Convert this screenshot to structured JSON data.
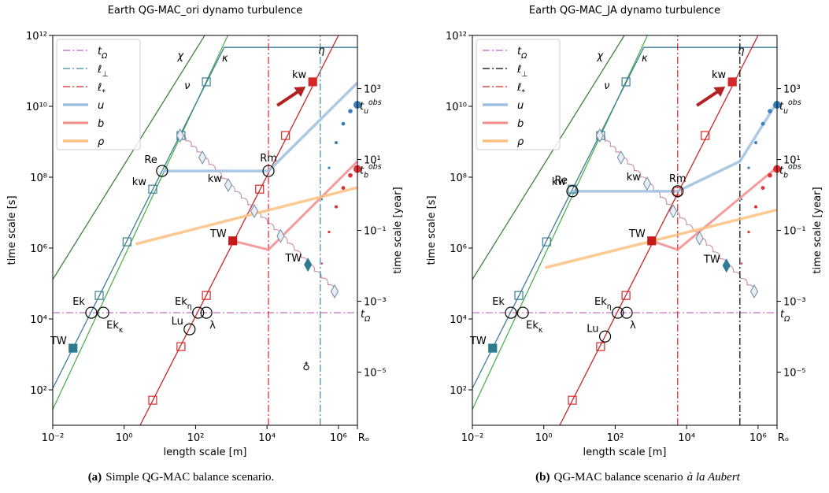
{
  "chart_data": [
    {
      "type": "line",
      "title": "Earth QG-MAC_ori dynamo turbulence",
      "xlabel": "length scale [m]",
      "ylabel": "time scale [s]",
      "y2label": "time scale [year]",
      "xscale": "log",
      "yscale": "log",
      "xlim": [
        0.01,
        3400000
      ],
      "ylim": [
        10,
        1000000000000
      ],
      "y2lim": [
        3.17e-07,
        31700
      ],
      "xticks": [
        {
          "value": 0.01,
          "label": "10⁻²"
        },
        {
          "value": 1,
          "label": "10⁰"
        },
        {
          "value": 100,
          "label": "10²"
        },
        {
          "value": 10000,
          "label": "10⁴"
        },
        {
          "value": 1000000,
          "label": "10⁶"
        },
        {
          "value": 3400000,
          "label": "Rₒ"
        }
      ],
      "yticks": [
        {
          "value": 100,
          "label": "10²"
        },
        {
          "value": 10000,
          "label": "10⁴"
        },
        {
          "value": 1000000,
          "label": "10⁶"
        },
        {
          "value": 100000000,
          "label": "10⁸"
        },
        {
          "value": 10000000000,
          "label": "10¹⁰"
        },
        {
          "value": 1000000000000,
          "label": "10¹²"
        }
      ],
      "y2ticks": [
        {
          "value": 1e-05,
          "label": "10⁻⁵"
        },
        {
          "value": 0.001,
          "label": "10⁻³"
        },
        {
          "value": 0.1,
          "label": "10⁻¹"
        },
        {
          "value": 10,
          "label": "10¹"
        },
        {
          "value": 1000,
          "label": "10³"
        }
      ],
      "legend": "upper left",
      "series": [
        {
          "name": "t",
          "sub": "Ω",
          "color": "#bf5fbf",
          "dash": "dashdot",
          "width": 1.2,
          "x": [
            0.01,
            3400000
          ],
          "y": [
            15000,
            15000
          ]
        },
        {
          "name": "ℓ",
          "sub": "⊥",
          "color": "#3a8aa6",
          "dash": "dashdot",
          "width": 1.2,
          "x": [
            310000,
            310000
          ],
          "y": [
            10,
            1000000000000
          ]
        },
        {
          "name": "ℓ",
          "sub": "*",
          "color": "#d62728",
          "dash": "dashdot",
          "width": 1.2,
          "x": [
            11000,
            11000
          ],
          "y": [
            10,
            1000000000000
          ]
        },
        {
          "name": "u",
          "color": "#9dbfdf",
          "width": 3.5,
          "x": [
            11.5,
            11000,
            3400000
          ],
          "y": [
            150000000,
            150000000,
            46000000000
          ]
        },
        {
          "name": "b",
          "color": "#f28b8b",
          "width": 3,
          "x": [
            1100,
            11000,
            3400000
          ],
          "y": [
            1600000,
            900000,
            280000000
          ]
        },
        {
          "name": "ρ",
          "color": "#fdbf80",
          "width": 3.5,
          "x": [
            2.1,
            3400000
          ],
          "y": [
            1300000,
            51000000
          ]
        }
      ],
      "curves": [
        {
          "name": "χ",
          "color": "#3f7f3f",
          "x": [
            0.01,
            180
          ],
          "y": [
            130000,
            1000000000000
          ]
        },
        {
          "name": "κ",
          "color": "#4fb04f",
          "x": [
            0.01,
            800
          ],
          "y": [
            28,
            1000000000000
          ]
        },
        {
          "name": "ν",
          "color": "#3b7d96",
          "x": [
            0.01,
            630,
            3400000
          ],
          "y": [
            110,
            460000000000,
            460000000000
          ]
        },
        {
          "name": "η",
          "color": "#c62828",
          "x": [
            2.8,
            1000000
          ],
          "y": [
            10,
            1000000000000
          ]
        }
      ],
      "squares": [
        {
          "x": 0.2,
          "y": 46000,
          "color": "#3b7d96"
        },
        {
          "x": 1.2,
          "y": 1500000,
          "color": "#3b7d96"
        },
        {
          "x": 6.3,
          "y": 46000000,
          "color": "#3b7d96",
          "label": "kw"
        },
        {
          "x": 39,
          "y": 1500000000,
          "color": "#3b7d96"
        },
        {
          "x": 200,
          "y": 49000000000,
          "color": "#3b7d96"
        },
        {
          "x": 6.3,
          "y": 51,
          "color": "#d62728"
        },
        {
          "x": 39,
          "y": 1660,
          "color": "#d62728"
        },
        {
          "x": 200,
          "y": 46000,
          "color": "#d62728"
        },
        {
          "x": 6200,
          "y": 46000000,
          "color": "#d62728"
        },
        {
          "x": 33000,
          "y": 1500000000,
          "color": "#d62728"
        },
        {
          "x": 190000,
          "y": 49000000000,
          "color": "#d62728",
          "filled": true,
          "label": "kw"
        },
        {
          "x": 0.037,
          "y": 1500,
          "color": "#2f7a8e",
          "filled": true,
          "label": "TW"
        },
        {
          "x": 1100,
          "y": 1600000,
          "color": "#c41a1a",
          "filled": true,
          "label": "TW"
        }
      ],
      "diamonds": [
        {
          "x": 37,
          "y": 1500000000
        },
        {
          "x": 155,
          "y": 360000000
        },
        {
          "x": 820,
          "y": 60000000,
          "label": "kw"
        },
        {
          "x": 4400,
          "y": 11000000
        },
        {
          "x": 24000,
          "y": 2200000
        },
        {
          "x": 140000,
          "y": 340000,
          "filled": true,
          "label": "TW"
        },
        {
          "x": 780000,
          "y": 60000
        }
      ],
      "points": [
        {
          "label": "Re",
          "x": 11.5,
          "y": 150000000
        },
        {
          "label": "Rm",
          "x": 11000,
          "y": 150000000
        },
        {
          "label": "Ek",
          "x": 0.12,
          "y": 15000
        },
        {
          "label": "Ek",
          "sub": "κ",
          "x": 0.26,
          "y": 15000
        },
        {
          "label": "Ek",
          "sub": "η",
          "x": 118,
          "y": 15000
        },
        {
          "label": "λ",
          "x": 200,
          "y": 15000
        },
        {
          "label": "Lu",
          "x": 68,
          "y": 5100
        }
      ],
      "obs": [
        {
          "label": "t",
          "sub": "u",
          "sup": "obs",
          "color": "#3a7fb8",
          "x": 3400000,
          "y": 11000000000
        },
        {
          "label": "t",
          "sub": "b",
          "sup": "obs",
          "color": "#e03030",
          "x": 3400000,
          "y": 170000000
        }
      ],
      "symbol": "♁"
    },
    {
      "type": "line",
      "title": "Earth QG-MAC_JA dynamo turbulence",
      "xlabel": "length scale [m]",
      "ylabel": "time scale [s]",
      "y2label": "time scale [year]",
      "xscale": "log",
      "yscale": "log",
      "xlim": [
        0.01,
        3400000
      ],
      "ylim": [
        10,
        1000000000000
      ],
      "y2lim": [
        3.17e-07,
        31700
      ],
      "xticks": [
        {
          "value": 0.01,
          "label": "10⁻²"
        },
        {
          "value": 1,
          "label": "10⁰"
        },
        {
          "value": 100,
          "label": "10²"
        },
        {
          "value": 10000,
          "label": "10⁴"
        },
        {
          "value": 1000000,
          "label": "10⁶"
        },
        {
          "value": 3400000,
          "label": "Rₒ"
        }
      ],
      "yticks": [
        {
          "value": 100,
          "label": "10²"
        },
        {
          "value": 10000,
          "label": "10⁴"
        },
        {
          "value": 1000000,
          "label": "10⁶"
        },
        {
          "value": 100000000,
          "label": "10⁸"
        },
        {
          "value": 10000000000,
          "label": "10¹⁰"
        },
        {
          "value": 1000000000000,
          "label": "10¹²"
        }
      ],
      "y2ticks": [
        {
          "value": 1e-05,
          "label": "10⁻⁵"
        },
        {
          "value": 0.001,
          "label": "10⁻³"
        },
        {
          "value": 0.1,
          "label": "10⁻¹"
        },
        {
          "value": 10,
          "label": "10¹"
        },
        {
          "value": 1000,
          "label": "10³"
        }
      ],
      "legend": "upper left",
      "series": [
        {
          "name": "t",
          "sub": "Ω",
          "color": "#bf5fbf",
          "dash": "dashdot",
          "width": 1.2,
          "x": [
            0.01,
            3400000
          ],
          "y": [
            15000,
            15000
          ]
        },
        {
          "name": "ℓ",
          "sub": "⊥",
          "color": "#000000",
          "dash": "dashdot",
          "width": 1.2,
          "x": [
            310000,
            310000
          ],
          "y": [
            10,
            1000000000000
          ]
        },
        {
          "name": "ℓ",
          "sub": "*",
          "color": "#d62728",
          "dash": "dashdot",
          "width": 1.2,
          "x": [
            5600,
            5600
          ],
          "y": [
            10,
            1000000000000
          ]
        },
        {
          "name": "u",
          "color": "#9dbfdf",
          "width": 3.5,
          "x": [
            6.3,
            5600,
            310000,
            3400000
          ],
          "y": [
            40000000,
            40000000,
            280000000,
            13000000000
          ]
        },
        {
          "name": "b",
          "color": "#f28b8b",
          "width": 3,
          "x": [
            1050,
            5600,
            3400000
          ],
          "y": [
            1600000,
            900000,
            190000000
          ]
        },
        {
          "name": "ρ",
          "color": "#fdbf80",
          "width": 3.5,
          "x": [
            1.1,
            3400000
          ],
          "y": [
            280000,
            12000000
          ]
        }
      ],
      "curves": [
        {
          "name": "χ",
          "color": "#3f7f3f",
          "x": [
            0.01,
            180
          ],
          "y": [
            130000,
            1000000000000
          ]
        },
        {
          "name": "κ",
          "color": "#4fb04f",
          "x": [
            0.01,
            800
          ],
          "y": [
            28,
            1000000000000
          ]
        },
        {
          "name": "ν",
          "color": "#3b7d96",
          "x": [
            0.01,
            630,
            3400000
          ],
          "y": [
            110,
            460000000000,
            460000000000
          ]
        },
        {
          "name": "η",
          "color": "#c62828",
          "x": [
            2.8,
            1000000
          ],
          "y": [
            10,
            1000000000000
          ]
        }
      ],
      "squares": [
        {
          "x": 0.2,
          "y": 46000,
          "color": "#3b7d96"
        },
        {
          "x": 1.2,
          "y": 1500000,
          "color": "#3b7d96"
        },
        {
          "x": 6.3,
          "y": 46000000,
          "color": "#3b7d96",
          "label": "kw"
        },
        {
          "x": 39,
          "y": 1500000000,
          "color": "#3b7d96"
        },
        {
          "x": 200,
          "y": 49000000000,
          "color": "#3b7d96"
        },
        {
          "x": 6.3,
          "y": 51,
          "color": "#d62728"
        },
        {
          "x": 39,
          "y": 1660,
          "color": "#d62728"
        },
        {
          "x": 200,
          "y": 46000,
          "color": "#d62728"
        },
        {
          "x": 5600,
          "y": 40000000,
          "color": "#d62728"
        },
        {
          "x": 33000,
          "y": 1500000000,
          "color": "#d62728"
        },
        {
          "x": 190000,
          "y": 49000000000,
          "color": "#d62728",
          "filled": true,
          "label": "kw"
        },
        {
          "x": 0.037,
          "y": 1500,
          "color": "#2f7a8e",
          "filled": true,
          "label": "TW"
        },
        {
          "x": 1050,
          "y": 1600000,
          "color": "#c41a1a",
          "filled": true,
          "label": "TW"
        }
      ],
      "diamonds": [
        {
          "x": 37,
          "y": 1500000000
        },
        {
          "x": 145,
          "y": 360000000
        },
        {
          "x": 780,
          "y": 66000000,
          "label": "kw"
        },
        {
          "x": 4200,
          "y": 11000000
        },
        {
          "x": 23000,
          "y": 1900000
        },
        {
          "x": 130000,
          "y": 320000,
          "filled": true,
          "label": "TW"
        },
        {
          "x": 780000,
          "y": 60000
        }
      ],
      "points": [
        {
          "label": "Re",
          "x": 6.3,
          "y": 40000000
        },
        {
          "label": "Rm",
          "x": 5600,
          "y": 40000000
        },
        {
          "label": "Ek",
          "x": 0.12,
          "y": 15000
        },
        {
          "label": "Ek",
          "sub": "κ",
          "x": 0.26,
          "y": 15000
        },
        {
          "label": "Ek",
          "sub": "η",
          "x": 118,
          "y": 15000
        },
        {
          "label": "λ",
          "x": 210,
          "y": 15000
        },
        {
          "label": "Lu",
          "x": 52,
          "y": 3200
        }
      ],
      "obs": [
        {
          "label": "t",
          "sub": "u",
          "sup": "obs",
          "color": "#3a7fb8",
          "x": 3400000,
          "y": 11000000000
        },
        {
          "label": "t",
          "sub": "b",
          "sup": "obs",
          "color": "#e03030",
          "x": 3400000,
          "y": 170000000
        }
      ]
    }
  ],
  "captions": [
    {
      "label": "(a)",
      "text": "Simple QG-MAC balance scenario."
    },
    {
      "label": "(b)",
      "text": "QG-MAC balance scenario",
      "emph": "à la Aubert"
    }
  ]
}
